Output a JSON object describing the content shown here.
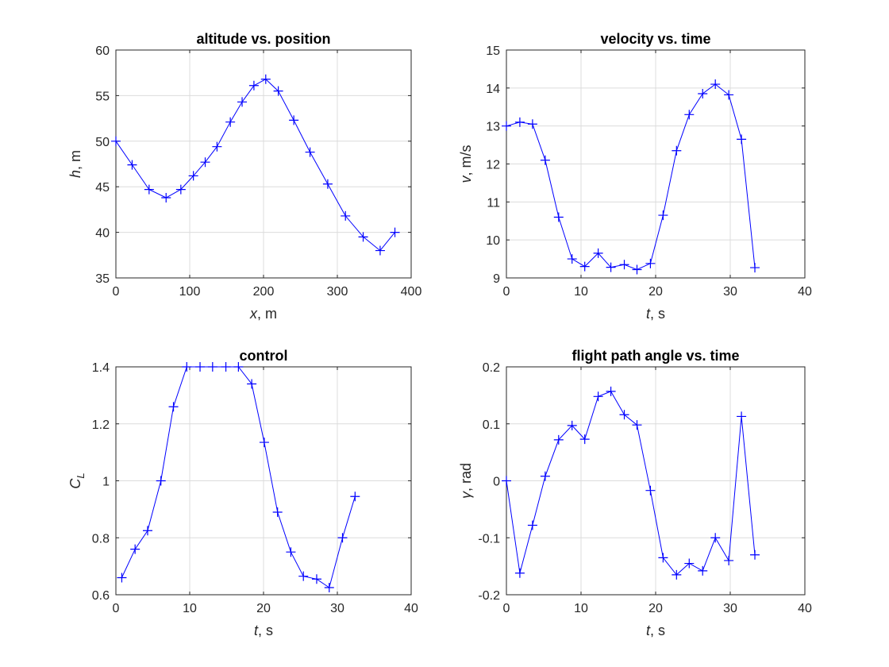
{
  "colors": {
    "series": "#0000ff",
    "grid": "#dcdcdc",
    "axis": "#262626"
  },
  "chart_data": [
    {
      "type": "line",
      "title": "altitude vs. position",
      "xlabel_var": "x",
      "xlabel_unit": ", m",
      "ylabel_var": "h",
      "ylabel_unit": ", m",
      "xlim": [
        0,
        400
      ],
      "ylim": [
        35,
        60
      ],
      "xticks": [
        0,
        100,
        200,
        300,
        400
      ],
      "yticks": [
        35,
        40,
        45,
        50,
        55,
        60
      ],
      "grid": true,
      "marker": "+",
      "x": [
        0,
        22,
        45,
        68,
        88,
        105,
        121,
        137,
        155,
        171,
        187,
        203,
        220,
        241,
        263,
        287,
        311,
        335,
        358,
        378
      ],
      "y": [
        50,
        47.4,
        44.7,
        43.8,
        44.7,
        46.2,
        47.7,
        49.4,
        52.1,
        54.3,
        56.1,
        56.8,
        55.5,
        52.3,
        48.8,
        45.3,
        41.8,
        39.5,
        38,
        40
      ]
    },
    {
      "type": "line",
      "title": "velocity vs. time",
      "xlabel_var": "t",
      "xlabel_unit": ", s",
      "ylabel_var": "v",
      "ylabel_unit": ", m/s",
      "xlim": [
        0,
        40
      ],
      "ylim": [
        9,
        15
      ],
      "xticks": [
        0,
        10,
        20,
        30,
        40
      ],
      "yticks": [
        9,
        10,
        11,
        12,
        13,
        14,
        15
      ],
      "grid": true,
      "marker": "+",
      "x": [
        0,
        1.8,
        3.5,
        5.2,
        7,
        8.8,
        10.5,
        12.3,
        14,
        15.8,
        17.5,
        19.3,
        21,
        22.8,
        24.5,
        26.3,
        28,
        29.8,
        31.5,
        33.3
      ],
      "y": [
        13,
        13.1,
        13.05,
        12.1,
        10.6,
        9.5,
        9.3,
        9.65,
        9.28,
        9.35,
        9.22,
        9.38,
        10.65,
        12.35,
        13.3,
        13.85,
        14.1,
        13.82,
        12.65,
        9.27
      ]
    },
    {
      "type": "line",
      "title": "control",
      "xlabel_var": "t",
      "xlabel_unit": ", s",
      "ylabel_var": "C",
      "ylabel_sub": "L",
      "xlim": [
        0,
        40
      ],
      "ylim": [
        0.6,
        1.4
      ],
      "xticks": [
        0,
        10,
        20,
        30,
        40
      ],
      "yticks": [
        0.6,
        0.8,
        1,
        1.2,
        1.4
      ],
      "grid": true,
      "marker": "+",
      "x": [
        0.8,
        2.6,
        4.3,
        6.1,
        7.8,
        9.6,
        11.4,
        13.1,
        14.9,
        16.6,
        18.4,
        20.1,
        21.9,
        23.7,
        25.4,
        27.2,
        28.9,
        30.7,
        32.4
      ],
      "y": [
        0.66,
        0.76,
        0.825,
        1,
        1.26,
        1.4,
        1.4,
        1.4,
        1.4,
        1.4,
        1.34,
        1.135,
        0.89,
        0.75,
        0.665,
        0.655,
        0.625,
        0.8,
        0.945
      ]
    },
    {
      "type": "line",
      "title": "flight path angle vs. time",
      "xlabel_var": "t",
      "xlabel_unit": ", s",
      "ylabel_var": "γ",
      "ylabel_unit": ", rad",
      "xlim": [
        0,
        40
      ],
      "ylim": [
        -0.2,
        0.2
      ],
      "xticks": [
        0,
        10,
        20,
        30,
        40
      ],
      "yticks": [
        -0.2,
        -0.1,
        0,
        0.1,
        0.2
      ],
      "grid": true,
      "marker": "+",
      "x": [
        0,
        1.8,
        3.5,
        5.2,
        7,
        8.8,
        10.5,
        12.3,
        14,
        15.8,
        17.5,
        19.3,
        21,
        22.8,
        24.5,
        26.3,
        28,
        29.8,
        31.5,
        33.3
      ],
      "y": [
        0,
        -0.162,
        -0.078,
        0.008,
        0.072,
        0.097,
        0.073,
        0.148,
        0.157,
        0.116,
        0.098,
        -0.017,
        -0.135,
        -0.165,
        -0.145,
        -0.158,
        -0.1,
        -0.14,
        0.113,
        -0.13
      ]
    }
  ]
}
